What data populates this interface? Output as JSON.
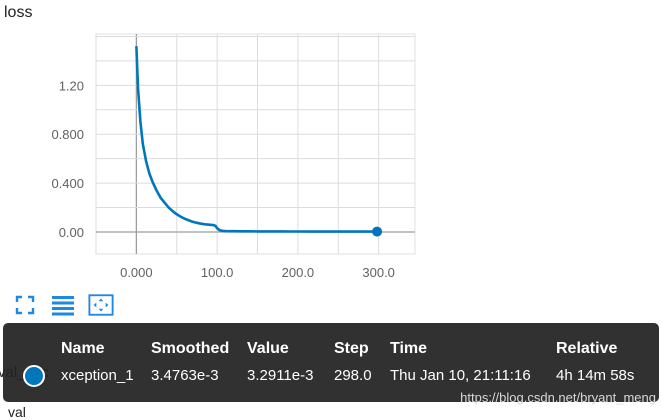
{
  "card": {
    "title": "loss",
    "background_label": "val_acc",
    "bottom_label": "val"
  },
  "chart_data": {
    "type": "line",
    "title": "loss",
    "xlabel": "",
    "ylabel": "",
    "xlim": [
      -50,
      345
    ],
    "ylim": [
      -0.18,
      1.62
    ],
    "x_ticks": [
      0,
      100,
      200,
      300
    ],
    "x_tick_labels": [
      "0.000",
      "100.0",
      "200.0",
      "300.0"
    ],
    "y_ticks": [
      0,
      0.4,
      0.8,
      1.2
    ],
    "y_tick_labels": [
      "0.00",
      "0.400",
      "0.800",
      "1.20"
    ],
    "grid": true,
    "series": [
      {
        "name": "xception_1",
        "color": "#0077bb",
        "x": [
          0,
          2,
          5,
          8,
          12,
          16,
          20,
          25,
          30,
          35,
          40,
          45,
          50,
          55,
          60,
          65,
          70,
          75,
          80,
          85,
          90,
          95,
          98,
          100,
          103,
          106,
          110,
          115,
          120,
          130,
          140,
          150,
          160,
          170,
          180,
          190,
          200,
          220,
          240,
          260,
          280,
          298
        ],
        "y": [
          1.52,
          1.18,
          0.9,
          0.72,
          0.58,
          0.48,
          0.41,
          0.34,
          0.28,
          0.24,
          0.2,
          0.17,
          0.145,
          0.125,
          0.108,
          0.095,
          0.083,
          0.075,
          0.068,
          0.063,
          0.06,
          0.057,
          0.05,
          0.03,
          0.015,
          0.01,
          0.008,
          0.007,
          0.0065,
          0.006,
          0.0055,
          0.005,
          0.0048,
          0.0045,
          0.0043,
          0.0041,
          0.004,
          0.0038,
          0.0037,
          0.0036,
          0.0035,
          0.0035
        ]
      }
    ],
    "highlight_point": {
      "x": 298,
      "y": 0.0035
    }
  },
  "toolbar": {
    "items": [
      {
        "name": "expand-icon"
      },
      {
        "name": "toggle-log-scale-icon"
      },
      {
        "name": "fit-domain-icon"
      }
    ],
    "color": "#1e88e5"
  },
  "tooltip": {
    "headers": {
      "name": "Name",
      "smoothed": "Smoothed",
      "value": "Value",
      "step": "Step",
      "time": "Time",
      "relative": "Relative"
    },
    "row": {
      "name": "xception_1",
      "smoothed": "3.4763e-3",
      "value": "3.2911e-3",
      "step": "298.0",
      "time": "Thu Jan 10, 21:11:16",
      "relative": "4h 14m 58s"
    },
    "swatch_color": "#0077bb"
  },
  "watermark": "https://blog.csdn.net/bryant_meng"
}
